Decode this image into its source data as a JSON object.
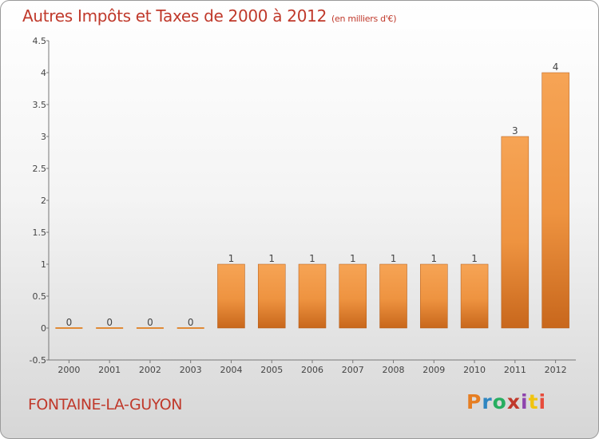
{
  "chart_data": {
    "type": "bar",
    "title": "Autres Impôts et Taxes de 2000 à 2012",
    "subtitle": "(en milliers d'€)",
    "categories": [
      "2000",
      "2001",
      "2002",
      "2003",
      "2004",
      "2005",
      "2006",
      "2007",
      "2008",
      "2009",
      "2010",
      "2011",
      "2012"
    ],
    "values": [
      0,
      0,
      0,
      0,
      1,
      1,
      1,
      1,
      1,
      1,
      1,
      3,
      4
    ],
    "data_labels": [
      "0",
      "0",
      "0",
      "0",
      "1",
      "1",
      "1",
      "1",
      "1",
      "1",
      "1",
      "3",
      "4"
    ],
    "ylim": [
      -0.5,
      4.5
    ],
    "yticks": [
      -0.5,
      0,
      0.5,
      1,
      1.5,
      2,
      2.5,
      3,
      3.5,
      4,
      4.5
    ],
    "ytick_labels": [
      "-0.5",
      "0",
      "0.5",
      "1",
      "1.5",
      "2",
      "2.5",
      "3",
      "3.5",
      "4",
      "4.5"
    ],
    "grid": false,
    "bar_color": "#f39c4b",
    "bar_color_dark": "#c8671c"
  },
  "footer": {
    "commune": "FONTAINE-LA-GUYON",
    "logo": "Proxiti"
  },
  "colors": {
    "title": "#c0392b",
    "logo_letters": [
      "#e67e22",
      "#2e86c1",
      "#27ae60",
      "#c0392b",
      "#8e44ad",
      "#f1c40f",
      "#e74c3c"
    ]
  }
}
